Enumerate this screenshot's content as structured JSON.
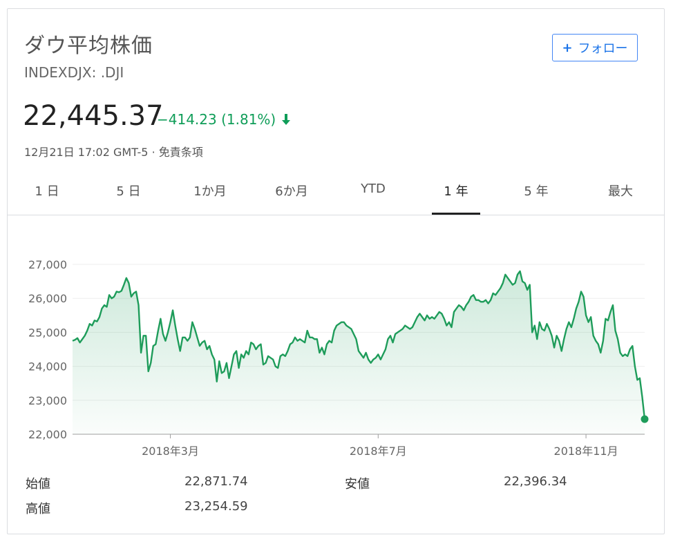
{
  "header": {
    "title": "ダウ平均株価",
    "ticker": "INDEXDJX: .DJI",
    "follow_label": "フォロー"
  },
  "quote": {
    "price": "22,445.37",
    "change": "−414.23 (1.81%)",
    "timestamp": "12月21日 17:02 GMT-5",
    "separator": "·",
    "disclaimer": "免責条項"
  },
  "tabs": [
    {
      "label": "1 日",
      "active": false
    },
    {
      "label": "5 日",
      "active": false
    },
    {
      "label": "1か月",
      "active": false
    },
    {
      "label": "6か月",
      "active": false
    },
    {
      "label": "YTD",
      "active": false
    },
    {
      "label": "1 年",
      "active": true
    },
    {
      "label": "5 年",
      "active": false
    },
    {
      "label": "最大",
      "active": false
    }
  ],
  "stats": {
    "open_label": "始値",
    "open_value": "22,871.74",
    "high_label": "高値",
    "high_value": "23,254.59",
    "low_label": "安値",
    "low_value": "22,396.34"
  },
  "colors": {
    "line": "#1e9c5a",
    "change": "#0f9d58",
    "accent": "#1a73e8"
  },
  "chart_data": {
    "type": "area",
    "ylim": [
      22000,
      27000
    ],
    "yticks": [
      27000,
      26000,
      25000,
      24000,
      23000,
      22000
    ],
    "ytick_labels": [
      "27,000",
      "26,000",
      "25,000",
      "24,000",
      "23,000",
      "22,000"
    ],
    "xticks": [
      {
        "label": "2018年3月",
        "index": 40
      },
      {
        "label": "2018年7月",
        "index": 125
      },
      {
        "label": "2018年11月",
        "index": 210
      }
    ],
    "series": [
      {
        "values": [
          24750,
          24780,
          24830,
          24700,
          24800,
          24900,
          25050,
          25250,
          25200,
          25350,
          25320,
          25450,
          25700,
          25800,
          25750,
          26100,
          26000,
          26050,
          26200,
          26180,
          26220,
          26400,
          26600,
          26450,
          26050,
          26150,
          26200,
          25800,
          24400,
          24900,
          24900,
          23850,
          24100,
          24600,
          24650,
          25050,
          25400,
          24950,
          24750,
          25000,
          25300,
          25650,
          25200,
          24800,
          24450,
          24850,
          24850,
          24750,
          24850,
          25300,
          25100,
          24850,
          24600,
          24700,
          24750,
          24500,
          24600,
          24350,
          24200,
          23550,
          24150,
          23800,
          23850,
          24100,
          23650,
          24000,
          24350,
          24450,
          23950,
          24350,
          24250,
          24450,
          24350,
          24700,
          24650,
          24500,
          24600,
          24650,
          24050,
          24100,
          24300,
          24250,
          24200,
          24000,
          23950,
          24300,
          24350,
          24300,
          24450,
          24650,
          24700,
          24850,
          24750,
          24800,
          24750,
          24700,
          25050,
          24850,
          24850,
          24800,
          24800,
          24400,
          24550,
          24350,
          24650,
          24750,
          24700,
          25050,
          25200,
          25250,
          25300,
          25300,
          25200,
          25150,
          25100,
          24950,
          24800,
          24450,
          24350,
          24250,
          24400,
          24200,
          24100,
          24200,
          24250,
          24350,
          24200,
          24350,
          24500,
          24800,
          24900,
          24700,
          24950,
          25000,
          25050,
          25100,
          25200,
          25150,
          25100,
          25150,
          25300,
          25450,
          25550,
          25450,
          25350,
          25500,
          25400,
          25450,
          25400,
          25500,
          25600,
          25550,
          25400,
          25200,
          25300,
          25150,
          25600,
          25700,
          25800,
          25750,
          25650,
          25800,
          25900,
          26050,
          26100,
          25950,
          25950,
          25900,
          25900,
          25950,
          25850,
          25950,
          26150,
          26100,
          26200,
          26300,
          26450,
          26700,
          26600,
          26500,
          26400,
          26450,
          26700,
          26800,
          26500,
          26450,
          26250,
          26400,
          25000,
          25200,
          24800,
          25300,
          25100,
          25050,
          25250,
          25100,
          24900,
          24550,
          24900,
          24750,
          24450,
          24800,
          25100,
          25300,
          25150,
          25400,
          25700,
          25900,
          26200,
          26050,
          25500,
          25300,
          25450,
          24900,
          24750,
          24650,
          24400,
          24750,
          25400,
          25350,
          25600,
          25800,
          25050,
          24800,
          24400,
          24300,
          24350,
          24300,
          24500,
          24600,
          24000,
          23600,
          23650,
          23100,
          22445
        ]
      }
    ]
  }
}
